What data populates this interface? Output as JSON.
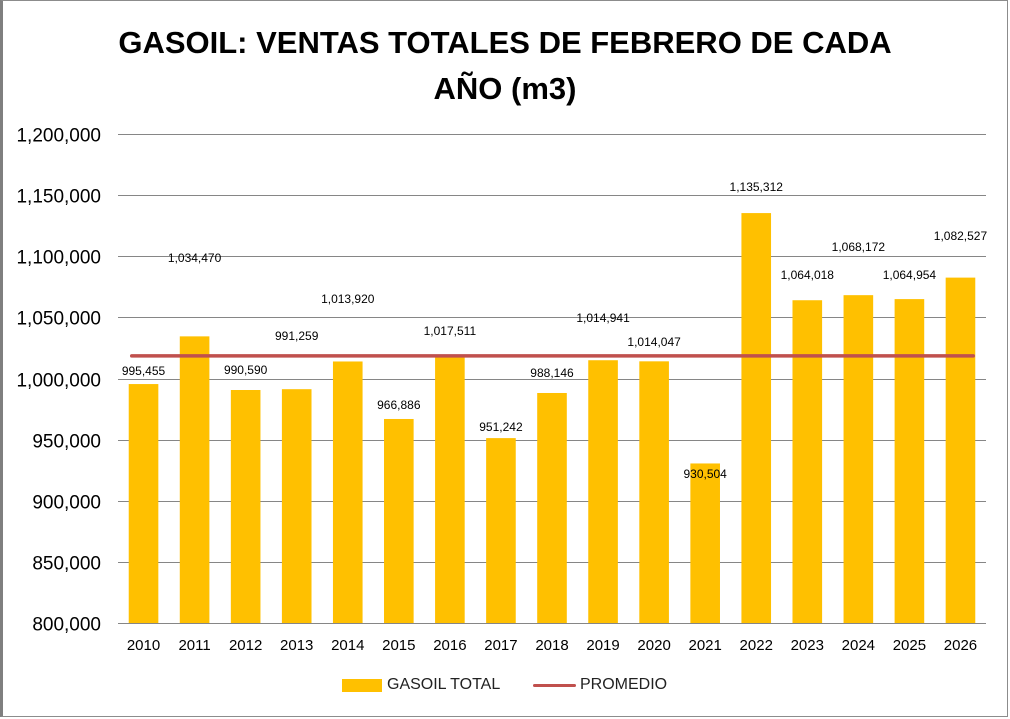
{
  "chart_data": {
    "type": "bar",
    "title": "GASOIL: VENTAS TOTALES DE FEBRERO DE CADA AÑO (m3)",
    "title_lines": [
      "GASOIL: VENTAS TOTALES DE FEBRERO DE CADA",
      "AÑO (m3)"
    ],
    "xlabel": "",
    "ylabel": "",
    "categories": [
      "2010",
      "2011",
      "2012",
      "2013",
      "2014",
      "2015",
      "2016",
      "2017",
      "2018",
      "2019",
      "2020",
      "2021",
      "2022",
      "2023",
      "2024",
      "2025",
      "2026"
    ],
    "series": [
      {
        "name": "GASOIL TOTAL",
        "type": "bar",
        "color": "#ffc000",
        "values": [
          995455,
          1034470,
          990590,
          991259,
          1013920,
          966886,
          1017511,
          951242,
          988146,
          1014941,
          1014047,
          930504,
          1135312,
          1064018,
          1068172,
          1064954,
          1082527
        ],
        "labels": [
          "995,455",
          "1,034,470",
          "990,590",
          "991,259",
          "1,013,920",
          "966,886",
          "1,017,511",
          "951,242",
          "988,146",
          "1,014,941",
          "1,014,047",
          "930,504",
          "1,135,312",
          "1,064,018",
          "1,068,172",
          "1,064,954",
          "1,082,527"
        ]
      },
      {
        "name": "PROMEDIO",
        "type": "line",
        "color": "#c0504d",
        "value": 1018500
      }
    ],
    "ylim": [
      800000,
      1200000
    ],
    "yticks": [
      800000,
      850000,
      900000,
      950000,
      1000000,
      1050000,
      1100000,
      1150000,
      1200000
    ],
    "ytick_labels": [
      "800,000",
      "850,000",
      "900,000",
      "950,000",
      "1,000,000",
      "1,050,000",
      "1,100,000",
      "1,150,000",
      "1,200,000"
    ],
    "grid": true,
    "legend": "bottom"
  }
}
